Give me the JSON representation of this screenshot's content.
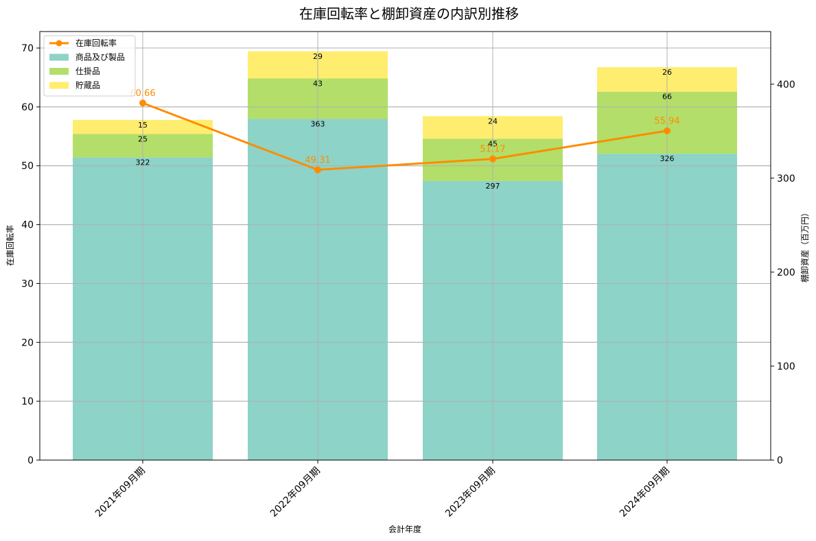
{
  "chart_data": {
    "type": "bar",
    "subtype": "stacked-bar-with-line-dual-axis",
    "title": "在庫回転率と棚卸資産の内訳別推移",
    "xlabel": "会計年度",
    "ylabel_left": "在庫回転率",
    "ylabel_right": "棚卸資産（百万円）",
    "categories": [
      "2021年09月期",
      "2022年09月期",
      "2023年09月期",
      "2024年09月期"
    ],
    "ylim_left": [
      0,
      72.8
    ],
    "ylim_right": [
      0,
      456
    ],
    "yticks_left": [
      0,
      10,
      20,
      30,
      40,
      50,
      60,
      70
    ],
    "yticks_right": [
      0,
      100,
      200,
      300,
      400
    ],
    "grid": true,
    "legend_position": "upper left",
    "series": [
      {
        "name": "在庫回転率",
        "type": "line",
        "axis": "left",
        "color": "#ff8c00",
        "values": [
          60.66,
          49.31,
          51.17,
          55.94
        ],
        "labels": [
          "60.66",
          "49.31",
          "51.17",
          "55.94"
        ]
      },
      {
        "name": "商品及び製品",
        "type": "bar",
        "axis": "right",
        "color": "#8dd3c7",
        "values": [
          322,
          363,
          297,
          326
        ]
      },
      {
        "name": "仕掛品",
        "type": "bar",
        "axis": "right",
        "color": "#b3de69",
        "values": [
          25,
          43,
          45,
          66
        ]
      },
      {
        "name": "貯蔵品",
        "type": "bar",
        "axis": "right",
        "color": "#ffed6f",
        "values": [
          15,
          29,
          24,
          26
        ]
      }
    ]
  }
}
